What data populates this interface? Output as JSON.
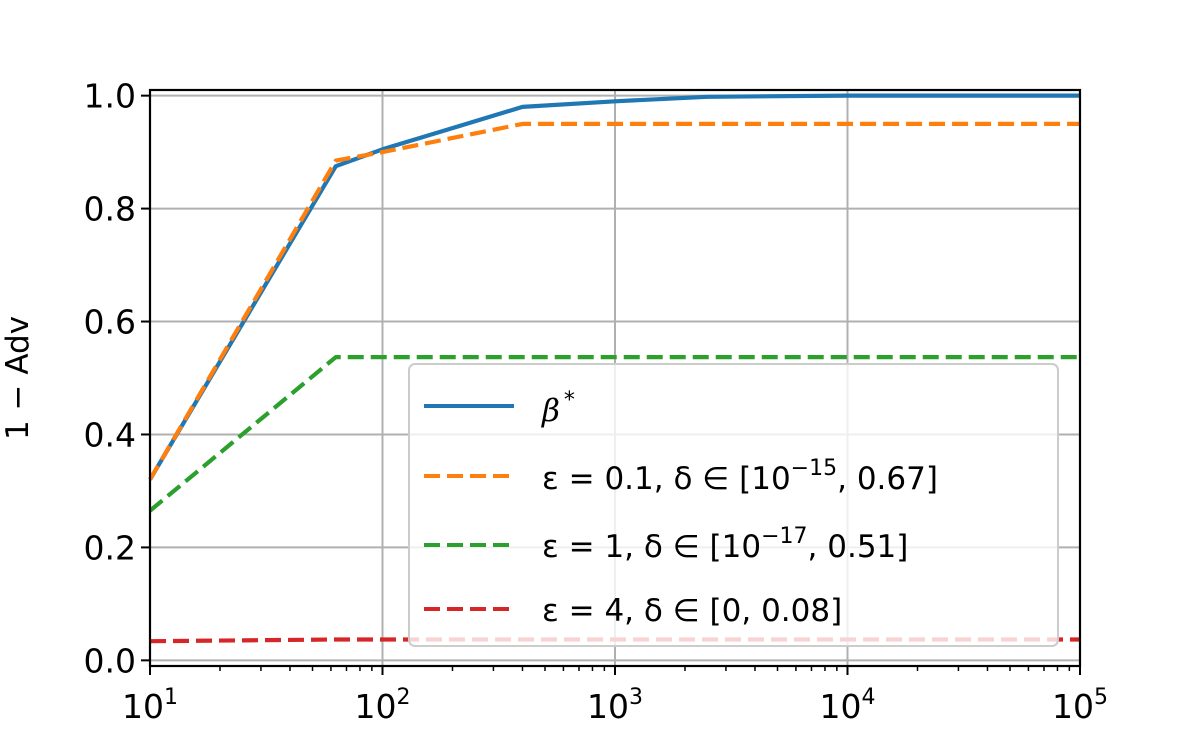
{
  "chart_data": {
    "type": "line",
    "xscale": "log",
    "xlim": [
      10,
      100000
    ],
    "ylim": [
      -0.01,
      1.01
    ],
    "xlabel": "",
    "ylabel": "1 − Adv",
    "grid": true,
    "legend_position": "center-right",
    "x_ticks": [
      {
        "value": 10,
        "base": "10",
        "exp": "1"
      },
      {
        "value": 100,
        "base": "10",
        "exp": "2"
      },
      {
        "value": 1000,
        "base": "10",
        "exp": "3"
      },
      {
        "value": 10000,
        "base": "10",
        "exp": "4"
      },
      {
        "value": 100000,
        "base": "10",
        "exp": "5"
      }
    ],
    "y_ticks": [
      {
        "value": 0.0,
        "label": "0.0"
      },
      {
        "value": 0.2,
        "label": "0.2"
      },
      {
        "value": 0.4,
        "label": "0.4"
      },
      {
        "value": 0.6,
        "label": "0.6"
      },
      {
        "value": 0.8,
        "label": "0.8"
      },
      {
        "value": 1.0,
        "label": "1.0"
      }
    ],
    "series": [
      {
        "key": "beta",
        "color": "#1f77b4",
        "dash": "solid",
        "x": [
          10,
          63,
          100,
          400,
          1000,
          2500,
          10000,
          100000
        ],
        "y": [
          0.32,
          0.875,
          0.905,
          0.98,
          0.99,
          0.998,
          1.0,
          1.0
        ]
      },
      {
        "key": "eps01",
        "color": "#ff7f0e",
        "dash": "dashed",
        "x": [
          10,
          63,
          100,
          400,
          1000,
          10000,
          100000
        ],
        "y": [
          0.32,
          0.885,
          0.9,
          0.95,
          0.95,
          0.95,
          0.95
        ]
      },
      {
        "key": "eps1",
        "color": "#2ca02c",
        "dash": "dashed",
        "x": [
          10,
          63,
          100,
          1000,
          10000,
          100000
        ],
        "y": [
          0.265,
          0.537,
          0.537,
          0.537,
          0.537,
          0.537
        ]
      },
      {
        "key": "eps4",
        "color": "#d62728",
        "dash": "dashed",
        "x": [
          10,
          63,
          100,
          1000,
          10000,
          100000
        ],
        "y": [
          0.034,
          0.037,
          0.037,
          0.037,
          0.037,
          0.037
        ]
      }
    ],
    "legend": {
      "beta": {
        "sym": "β",
        "sup": "*"
      },
      "eps01": {
        "pre": "ε = 0.1, δ ∈ [10",
        "sup": "−15",
        "post": ", 0.67]"
      },
      "eps1": {
        "pre": "ε = 1, δ ∈ [10",
        "sup": "−17",
        "post": ", 0.51]"
      },
      "eps4": {
        "pre": "ε = 4, δ ∈ [0, 0.08]"
      }
    }
  }
}
